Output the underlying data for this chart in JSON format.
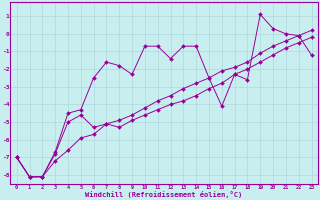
{
  "xlabel": "Windchill (Refroidissement éolien,°C)",
  "bg_color": "#c8eef0",
  "line_color": "#990099",
  "grid_color": "#b0d8db",
  "xlim": [
    -0.5,
    23.5
  ],
  "ylim": [
    -8.5,
    1.8
  ],
  "yticks": [
    1,
    0,
    -1,
    -2,
    -3,
    -4,
    -5,
    -6,
    -7,
    -8
  ],
  "xticks": [
    0,
    1,
    2,
    3,
    4,
    5,
    6,
    7,
    8,
    9,
    10,
    11,
    12,
    13,
    14,
    15,
    16,
    17,
    18,
    19,
    20,
    21,
    22,
    23
  ],
  "line1_x": [
    0,
    1,
    2,
    3,
    4,
    5,
    6,
    7,
    8,
    9,
    10,
    11,
    12,
    13,
    14,
    15,
    16,
    17,
    18,
    19,
    20,
    21,
    22,
    23
  ],
  "line1_y": [
    -7.0,
    -8.1,
    -8.1,
    -6.7,
    -4.5,
    -4.3,
    -2.5,
    -1.6,
    -1.8,
    -2.3,
    -0.7,
    -0.7,
    -1.4,
    -0.7,
    -0.7,
    -2.5,
    -4.1,
    -2.3,
    -2.6,
    1.1,
    0.3,
    0.0,
    -0.1,
    -1.2
  ],
  "line2_x": [
    0,
    1,
    2,
    3,
    4,
    5,
    6,
    7,
    8,
    9,
    10,
    11,
    12,
    13,
    14,
    15,
    16,
    17,
    18,
    19,
    20,
    21,
    22,
    23
  ],
  "line2_y": [
    -7.0,
    -8.1,
    -8.1,
    -6.8,
    -5.0,
    -4.6,
    -5.3,
    -5.1,
    -5.3,
    -4.9,
    -4.6,
    -4.3,
    -4.0,
    -3.8,
    -3.5,
    -3.1,
    -2.8,
    -2.3,
    -2.0,
    -1.6,
    -1.2,
    -0.8,
    -0.5,
    -0.2
  ],
  "line3_x": [
    0,
    1,
    2,
    3,
    4,
    5,
    6,
    7,
    8,
    9,
    10,
    11,
    12,
    13,
    14,
    15,
    16,
    17,
    18,
    19,
    20,
    21,
    22,
    23
  ],
  "line3_y": [
    -7.0,
    -8.1,
    -8.1,
    -7.2,
    -6.6,
    -5.9,
    -5.7,
    -5.1,
    -4.9,
    -4.6,
    -4.2,
    -3.8,
    -3.5,
    -3.1,
    -2.8,
    -2.5,
    -2.1,
    -1.9,
    -1.6,
    -1.1,
    -0.7,
    -0.4,
    -0.1,
    0.2
  ]
}
